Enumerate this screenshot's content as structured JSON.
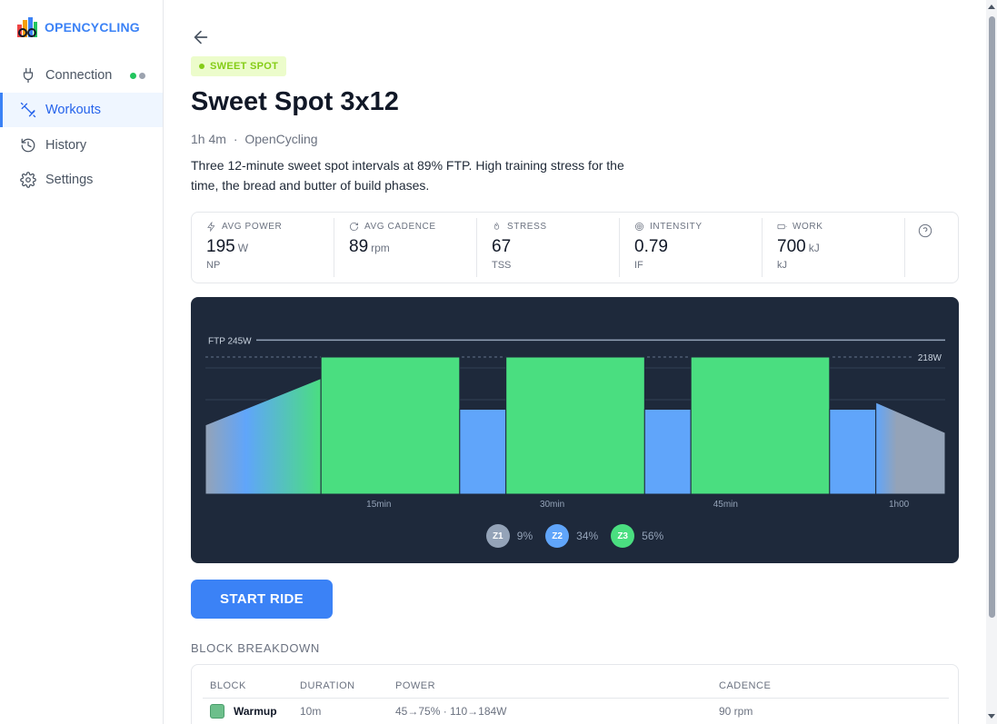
{
  "app": {
    "name": "OPENCYCLING"
  },
  "nav": {
    "items": [
      {
        "label": "Connection",
        "icon": "plug-icon"
      },
      {
        "label": "Workouts",
        "icon": "dumbbell-icon",
        "active": true
      },
      {
        "label": "History",
        "icon": "history-icon"
      },
      {
        "label": "Settings",
        "icon": "gear-icon"
      }
    ],
    "connection_status_colors": [
      "#22c55e",
      "#9ca3af"
    ]
  },
  "workout": {
    "tag": "SWEET SPOT",
    "title": "Sweet Spot 3x12",
    "duration": "1h 4m",
    "separator": "·",
    "author": "OpenCycling",
    "description": "Three 12-minute sweet spot intervals at 89% FTP. High training stress for the time, the bread and butter of build phases."
  },
  "stats": [
    {
      "label": "AVG POWER",
      "icon": "bolt-icon",
      "value": "195",
      "unit": "W",
      "sub": "NP"
    },
    {
      "label": "AVG CADENCE",
      "icon": "refresh-icon",
      "value": "89",
      "unit": "rpm",
      "sub": ""
    },
    {
      "label": "STRESS",
      "icon": "flame-icon",
      "value": "67",
      "unit": "",
      "sub": "TSS"
    },
    {
      "label": "INTENSITY",
      "icon": "target-icon",
      "value": "0.79",
      "unit": "",
      "sub": "IF"
    },
    {
      "label": "WORK",
      "icon": "battery-icon",
      "value": "700",
      "unit": "kJ",
      "sub": "kJ"
    }
  ],
  "chart_data": {
    "type": "area",
    "ftp_label": "FTP 245W",
    "ftp_watts": 245,
    "target_label": "218W",
    "target_watts": 218,
    "ylim": [
      0,
      270
    ],
    "xlim_min": [
      0,
      64
    ],
    "x_ticks": [
      {
        "min": 15,
        "label": "15min"
      },
      {
        "min": 30,
        "label": "30min"
      },
      {
        "min": 45,
        "label": "45min"
      },
      {
        "min": 60,
        "label": "1h00"
      }
    ],
    "segments": [
      {
        "start": 0,
        "end": 10,
        "from_w": 110,
        "to_w": 184,
        "zone": "warmup"
      },
      {
        "start": 10,
        "end": 22,
        "from_w": 218,
        "to_w": 218,
        "zone": "z3"
      },
      {
        "start": 22,
        "end": 26,
        "from_w": 135,
        "to_w": 135,
        "zone": "z2"
      },
      {
        "start": 26,
        "end": 38,
        "from_w": 218,
        "to_w": 218,
        "zone": "z3"
      },
      {
        "start": 38,
        "end": 42,
        "from_w": 135,
        "to_w": 135,
        "zone": "z2"
      },
      {
        "start": 42,
        "end": 54,
        "from_w": 218,
        "to_w": 218,
        "zone": "z3"
      },
      {
        "start": 54,
        "end": 58,
        "from_w": 135,
        "to_w": 135,
        "zone": "z2"
      },
      {
        "start": 58,
        "end": 64,
        "from_w": 146,
        "to_w": 98,
        "zone": "cooldown"
      }
    ],
    "zones": [
      {
        "badge": "Z1",
        "pct": "9%",
        "color": "#94a3b8"
      },
      {
        "badge": "Z2",
        "pct": "34%",
        "color": "#60a5fa"
      },
      {
        "badge": "Z3",
        "pct": "56%",
        "color": "#4ade80"
      }
    ],
    "colors": {
      "z2": "#60a5fa",
      "z3": "#4ade80",
      "z1": "#94a3b8",
      "bg": "#1e293b"
    }
  },
  "actions": {
    "start_label": "START RIDE"
  },
  "breakdown": {
    "title": "BLOCK BREAKDOWN",
    "columns": [
      "BLOCK",
      "DURATION",
      "POWER",
      "CADENCE"
    ],
    "rows": [
      {
        "block": "Warmup",
        "duration": "10m",
        "power": "45→75% · 110→184W",
        "cadence": "90 rpm",
        "color": "#6dbf8b"
      }
    ]
  }
}
